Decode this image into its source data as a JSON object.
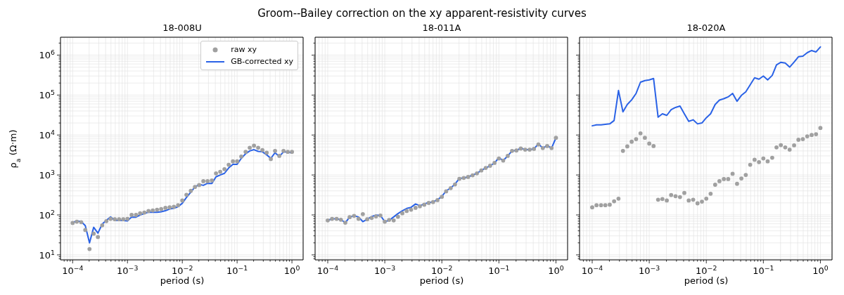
{
  "chart_data": [
    {
      "type": "line",
      "title": "18-008U",
      "annotations": [
        "Groom--Bailey correction on the xy apparent-resistivity curves"
      ],
      "xlabel": "period (s)",
      "ylabel": "ρ$_{a}$  (Ω·m)",
      "log": "xy",
      "grid": true,
      "legend": "top right",
      "x": [
        0.0001,
        0.000119,
        0.000143,
        0.00017,
        0.000203,
        0.000242,
        0.000289,
        0.000346,
        0.000412,
        0.000492,
        0.000588,
        0.000702,
        0.000838,
        0.001,
        0.00119,
        0.00143,
        0.0017,
        0.00203,
        0.00242,
        0.00289,
        0.00346,
        0.00412,
        0.00492,
        0.00588,
        0.00702,
        0.00838,
        0.01,
        0.0119,
        0.0143,
        0.017,
        0.0203,
        0.0242,
        0.0289,
        0.0346,
        0.0412,
        0.0492,
        0.0588,
        0.0702,
        0.0838,
        0.1,
        0.119,
        0.143,
        0.17,
        0.203,
        0.242,
        0.289,
        0.346,
        0.412,
        0.492,
        0.588,
        0.702,
        0.838,
        1
      ],
      "xlim": [
        6e-05,
        1.6
      ],
      "ylim": [
        7.5,
        2800000
      ],
      "xticks": [
        {
          "value": 7e-05,
          "label": null
        },
        {
          "value": 8e-05,
          "label": null
        },
        {
          "value": 9e-05,
          "label": null
        },
        {
          "value": 0.0001,
          "label": "10$^{−4}$"
        },
        {
          "value": 0.0002,
          "label": null
        },
        {
          "value": 0.0003,
          "label": null
        },
        {
          "value": 0.0004,
          "label": null
        },
        {
          "value": 0.0005,
          "label": null
        },
        {
          "value": 0.0006,
          "label": null
        },
        {
          "value": 0.0007,
          "label": null
        },
        {
          "value": 0.0008,
          "label": null
        },
        {
          "value": 0.0009,
          "label": null
        },
        {
          "value": 0.001,
          "label": "10$^{−3}$"
        },
        {
          "value": 0.002,
          "label": null
        },
        {
          "value": 0.003,
          "label": null
        },
        {
          "value": 0.004,
          "label": null
        },
        {
          "value": 0.005,
          "label": null
        },
        {
          "value": 0.006,
          "label": null
        },
        {
          "value": 0.007,
          "label": null
        },
        {
          "value": 0.008,
          "label": null
        },
        {
          "value": 0.009,
          "label": null
        },
        {
          "value": 0.01,
          "label": "10$^{−2}$"
        },
        {
          "value": 0.02,
          "label": null
        },
        {
          "value": 0.03,
          "label": null
        },
        {
          "value": 0.04,
          "label": null
        },
        {
          "value": 0.05,
          "label": null
        },
        {
          "value": 0.06,
          "label": null
        },
        {
          "value": 0.07,
          "label": null
        },
        {
          "value": 0.08,
          "label": null
        },
        {
          "value": 0.09,
          "label": null
        },
        {
          "value": 0.1,
          "label": "10$^{−1}$"
        },
        {
          "value": 0.2,
          "label": null
        },
        {
          "value": 0.3,
          "label": null
        },
        {
          "value": 0.4,
          "label": null
        },
        {
          "value": 0.5,
          "label": null
        },
        {
          "value": 0.6,
          "label": null
        },
        {
          "value": 0.7,
          "label": null
        },
        {
          "value": 0.8,
          "label": null
        },
        {
          "value": 0.9,
          "label": null
        },
        {
          "value": 1,
          "label": "10$^{0}$"
        }
      ],
      "yticks": [
        {
          "value": 8,
          "label": null
        },
        {
          "value": 9,
          "label": null
        },
        {
          "value": 10,
          "label": "10$^{1}$"
        },
        {
          "value": 20,
          "label": null
        },
        {
          "value": 30,
          "label": null
        },
        {
          "value": 40,
          "label": null
        },
        {
          "value": 50,
          "label": null
        },
        {
          "value": 60,
          "label": null
        },
        {
          "value": 70,
          "label": null
        },
        {
          "value": 80,
          "label": null
        },
        {
          "value": 90,
          "label": null
        },
        {
          "value": 100,
          "label": "10$^{2}$"
        },
        {
          "value": 200,
          "label": null
        },
        {
          "value": 300,
          "label": null
        },
        {
          "value": 400,
          "label": null
        },
        {
          "value": 500,
          "label": null
        },
        {
          "value": 600,
          "label": null
        },
        {
          "value": 700,
          "label": null
        },
        {
          "value": 800,
          "label": null
        },
        {
          "value": 900,
          "label": null
        },
        {
          "value": 1000,
          "label": "10$^{3}$"
        },
        {
          "value": 2000,
          "label": null
        },
        {
          "value": 3000,
          "label": null
        },
        {
          "value": 4000,
          "label": null
        },
        {
          "value": 5000,
          "label": null
        },
        {
          "value": 6000,
          "label": null
        },
        {
          "value": 7000,
          "label": null
        },
        {
          "value": 8000,
          "label": null
        },
        {
          "value": 9000,
          "label": null
        },
        {
          "value": 10000,
          "label": "10$^{4}$"
        },
        {
          "value": 20000,
          "label": null
        },
        {
          "value": 30000,
          "label": null
        },
        {
          "value": 40000,
          "label": null
        },
        {
          "value": 50000,
          "label": null
        },
        {
          "value": 60000,
          "label": null
        },
        {
          "value": 70000,
          "label": null
        },
        {
          "value": 80000,
          "label": null
        },
        {
          "value": 90000,
          "label": null
        },
        {
          "value": 100000,
          "label": "10$^{5}$"
        },
        {
          "value": 200000,
          "label": null
        },
        {
          "value": 300000,
          "label": null
        },
        {
          "value": 400000,
          "label": null
        },
        {
          "value": 500000,
          "label": null
        },
        {
          "value": 600000,
          "label": null
        },
        {
          "value": 700000,
          "label": null
        },
        {
          "value": 800000,
          "label": null
        },
        {
          "value": 900000,
          "label": null
        },
        {
          "value": 1000000,
          "label": "10$^{6}$"
        },
        {
          "value": 2000000,
          "label": null
        }
      ],
      "series": [
        {
          "name": "raw xy",
          "type": "scatter",
          "marker": "circle",
          "color": "#a0a0a0",
          "values": [
            63,
            68,
            66,
            42,
            14,
            34,
            28,
            55,
            70,
            80,
            78,
            78,
            78,
            80,
            100,
            100,
            110,
            115,
            125,
            130,
            135,
            140,
            150,
            155,
            160,
            175,
            230,
            320,
            400,
            500,
            560,
            700,
            700,
            730,
            1100,
            1200,
            1400,
            1800,
            2200,
            2200,
            2900,
            3800,
            4800,
            5400,
            4800,
            4200,
            3600,
            2500,
            4000,
            3000,
            4000,
            3800,
            3800
          ]
        },
        {
          "name": "GB-corrected xy",
          "color": "#2a62e6",
          "values": [
            64,
            71,
            68,
            54,
            20,
            49,
            35,
            59,
            73,
            89,
            73,
            74,
            72,
            71,
            89,
            88,
            100,
            108,
            117,
            116,
            116,
            120,
            127,
            141,
            147,
            161,
            196,
            273,
            370,
            500,
            580,
            550,
            620,
            610,
            900,
            1000,
            1100,
            1500,
            1850,
            1850,
            2600,
            3400,
            4000,
            4300,
            3900,
            3800,
            3200,
            2600,
            3600,
            2900,
            3800,
            3700,
            3600
          ]
        }
      ]
    },
    {
      "type": "line",
      "title": "18-011A",
      "xlabel": "period (s)",
      "log": "xy",
      "grid": true,
      "tick_labels": "x",
      "x": [
        0.0001,
        0.000119,
        0.000143,
        0.00017,
        0.000203,
        0.000242,
        0.000289,
        0.000346,
        0.000412,
        0.000492,
        0.000588,
        0.000702,
        0.000838,
        0.001,
        0.00119,
        0.00143,
        0.0017,
        0.00203,
        0.00242,
        0.00289,
        0.00346,
        0.00412,
        0.00492,
        0.00588,
        0.00702,
        0.00838,
        0.01,
        0.0119,
        0.0143,
        0.017,
        0.0203,
        0.0242,
        0.0289,
        0.0346,
        0.0412,
        0.0492,
        0.0588,
        0.0702,
        0.0838,
        0.1,
        0.119,
        0.143,
        0.17,
        0.203,
        0.242,
        0.289,
        0.346,
        0.412,
        0.492,
        0.588,
        0.702,
        0.838,
        1
      ],
      "xlim": [
        6e-05,
        1.6
      ],
      "ylim": [
        7.5,
        2800000
      ],
      "xticks": [
        {
          "value": 7e-05,
          "label": null
        },
        {
          "value": 8e-05,
          "label": null
        },
        {
          "value": 9e-05,
          "label": null
        },
        {
          "value": 0.0001,
          "label": "10$^{−4}$"
        },
        {
          "value": 0.0002,
          "label": null
        },
        {
          "value": 0.0003,
          "label": null
        },
        {
          "value": 0.0004,
          "label": null
        },
        {
          "value": 0.0005,
          "label": null
        },
        {
          "value": 0.0006,
          "label": null
        },
        {
          "value": 0.0007,
          "label": null
        },
        {
          "value": 0.0008,
          "label": null
        },
        {
          "value": 0.0009,
          "label": null
        },
        {
          "value": 0.001,
          "label": "10$^{−3}$"
        },
        {
          "value": 0.002,
          "label": null
        },
        {
          "value": 0.003,
          "label": null
        },
        {
          "value": 0.004,
          "label": null
        },
        {
          "value": 0.005,
          "label": null
        },
        {
          "value": 0.006,
          "label": null
        },
        {
          "value": 0.007,
          "label": null
        },
        {
          "value": 0.008,
          "label": null
        },
        {
          "value": 0.009,
          "label": null
        },
        {
          "value": 0.01,
          "label": "10$^{−2}$"
        },
        {
          "value": 0.02,
          "label": null
        },
        {
          "value": 0.03,
          "label": null
        },
        {
          "value": 0.04,
          "label": null
        },
        {
          "value": 0.05,
          "label": null
        },
        {
          "value": 0.06,
          "label": null
        },
        {
          "value": 0.07,
          "label": null
        },
        {
          "value": 0.08,
          "label": null
        },
        {
          "value": 0.09,
          "label": null
        },
        {
          "value": 0.1,
          "label": "10$^{−1}$"
        },
        {
          "value": 0.2,
          "label": null
        },
        {
          "value": 0.3,
          "label": null
        },
        {
          "value": 0.4,
          "label": null
        },
        {
          "value": 0.5,
          "label": null
        },
        {
          "value": 0.6,
          "label": null
        },
        {
          "value": 0.7,
          "label": null
        },
        {
          "value": 0.8,
          "label": null
        },
        {
          "value": 0.9,
          "label": null
        },
        {
          "value": 1,
          "label": "10$^{0}$"
        }
      ],
      "yticks": [
        {
          "value": 8,
          "label": null
        },
        {
          "value": 9,
          "label": null
        },
        {
          "value": 10,
          "label": null
        },
        {
          "value": 20,
          "label": null
        },
        {
          "value": 30,
          "label": null
        },
        {
          "value": 40,
          "label": null
        },
        {
          "value": 50,
          "label": null
        },
        {
          "value": 60,
          "label": null
        },
        {
          "value": 70,
          "label": null
        },
        {
          "value": 80,
          "label": null
        },
        {
          "value": 90,
          "label": null
        },
        {
          "value": 100,
          "label": null
        },
        {
          "value": 200,
          "label": null
        },
        {
          "value": 300,
          "label": null
        },
        {
          "value": 400,
          "label": null
        },
        {
          "value": 500,
          "label": null
        },
        {
          "value": 600,
          "label": null
        },
        {
          "value": 700,
          "label": null
        },
        {
          "value": 800,
          "label": null
        },
        {
          "value": 900,
          "label": null
        },
        {
          "value": 1000,
          "label": null
        },
        {
          "value": 2000,
          "label": null
        },
        {
          "value": 3000,
          "label": null
        },
        {
          "value": 4000,
          "label": null
        },
        {
          "value": 5000,
          "label": null
        },
        {
          "value": 6000,
          "label": null
        },
        {
          "value": 7000,
          "label": null
        },
        {
          "value": 8000,
          "label": null
        },
        {
          "value": 9000,
          "label": null
        },
        {
          "value": 10000,
          "label": null
        },
        {
          "value": 20000,
          "label": null
        },
        {
          "value": 30000,
          "label": null
        },
        {
          "value": 40000,
          "label": null
        },
        {
          "value": 50000,
          "label": null
        },
        {
          "value": 60000,
          "label": null
        },
        {
          "value": 70000,
          "label": null
        },
        {
          "value": 80000,
          "label": null
        },
        {
          "value": 90000,
          "label": null
        },
        {
          "value": 100000,
          "label": null
        },
        {
          "value": 200000,
          "label": null
        },
        {
          "value": 300000,
          "label": null
        },
        {
          "value": 400000,
          "label": null
        },
        {
          "value": 500000,
          "label": null
        },
        {
          "value": 600000,
          "label": null
        },
        {
          "value": 700000,
          "label": null
        },
        {
          "value": 800000,
          "label": null
        },
        {
          "value": 900000,
          "label": null
        },
        {
          "value": 1000000,
          "label": null
        },
        {
          "value": 2000000,
          "label": null
        }
      ],
      "series": [
        {
          "type": "scatter",
          "marker": "circle",
          "color": "#a0a0a0",
          "values": [
            73,
            80,
            80,
            76,
            64,
            88,
            95,
            80,
            105,
            78,
            84,
            92,
            97,
            68,
            75,
            73,
            90,
            110,
            125,
            135,
            150,
            165,
            180,
            200,
            210,
            235,
            285,
            390,
            470,
            580,
            800,
            840,
            890,
            980,
            1100,
            1300,
            1500,
            1700,
            2000,
            2600,
            2300,
            3000,
            4000,
            4100,
            4600,
            4300,
            4300,
            4500,
            5800,
            4700,
            5300,
            4700,
            8500
          ]
        },
        {
          "color": "#2a62e6",
          "values": [
            73,
            80,
            80,
            76,
            64,
            88,
            95,
            89,
            68,
            78,
            91,
            99,
            97,
            68,
            73,
            89,
            108,
            127,
            145,
            155,
            188,
            170,
            188,
            205,
            210,
            240,
            290,
            400,
            475,
            590,
            820,
            840,
            900,
            990,
            1100,
            1300,
            1500,
            1700,
            2000,
            2700,
            2300,
            3000,
            4000,
            4100,
            4700,
            4300,
            4300,
            4500,
            6000,
            4700,
            5400,
            4700,
            8500
          ]
        }
      ]
    },
    {
      "type": "line",
      "title": "18-020A",
      "xlabel": "period (s)",
      "log": "xy",
      "grid": true,
      "tick_labels": "x",
      "x": [
        0.0001,
        0.000119,
        0.000143,
        0.00017,
        0.000203,
        0.000242,
        0.000289,
        0.000346,
        0.000412,
        0.000492,
        0.000588,
        0.000702,
        0.000838,
        0.001,
        0.00119,
        0.00143,
        0.0017,
        0.00203,
        0.00242,
        0.00289,
        0.00346,
        0.00412,
        0.00492,
        0.00588,
        0.00702,
        0.00838,
        0.01,
        0.0119,
        0.0143,
        0.017,
        0.0203,
        0.0242,
        0.0289,
        0.0346,
        0.0412,
        0.0492,
        0.0588,
        0.0702,
        0.0838,
        0.1,
        0.119,
        0.143,
        0.17,
        0.203,
        0.242,
        0.289,
        0.346,
        0.412,
        0.492,
        0.588,
        0.702,
        0.838,
        1
      ],
      "xlim": [
        6e-05,
        1.6
      ],
      "ylim": [
        7.5,
        2800000
      ],
      "xticks": [
        {
          "value": 7e-05,
          "label": null
        },
        {
          "value": 8e-05,
          "label": null
        },
        {
          "value": 9e-05,
          "label": null
        },
        {
          "value": 0.0001,
          "label": "10$^{−4}$"
        },
        {
          "value": 0.0002,
          "label": null
        },
        {
          "value": 0.0003,
          "label": null
        },
        {
          "value": 0.0004,
          "label": null
        },
        {
          "value": 0.0005,
          "label": null
        },
        {
          "value": 0.0006,
          "label": null
        },
        {
          "value": 0.0007,
          "label": null
        },
        {
          "value": 0.0008,
          "label": null
        },
        {
          "value": 0.0009,
          "label": null
        },
        {
          "value": 0.001,
          "label": "10$^{−3}$"
        },
        {
          "value": 0.002,
          "label": null
        },
        {
          "value": 0.003,
          "label": null
        },
        {
          "value": 0.004,
          "label": null
        },
        {
          "value": 0.005,
          "label": null
        },
        {
          "value": 0.006,
          "label": null
        },
        {
          "value": 0.007,
          "label": null
        },
        {
          "value": 0.008,
          "label": null
        },
        {
          "value": 0.009,
          "label": null
        },
        {
          "value": 0.01,
          "label": "10$^{−2}$"
        },
        {
          "value": 0.02,
          "label": null
        },
        {
          "value": 0.03,
          "label": null
        },
        {
          "value": 0.04,
          "label": null
        },
        {
          "value": 0.05,
          "label": null
        },
        {
          "value": 0.06,
          "label": null
        },
        {
          "value": 0.07,
          "label": null
        },
        {
          "value": 0.08,
          "label": null
        },
        {
          "value": 0.09,
          "label": null
        },
        {
          "value": 0.1,
          "label": "10$^{−1}$"
        },
        {
          "value": 0.2,
          "label": null
        },
        {
          "value": 0.3,
          "label": null
        },
        {
          "value": 0.4,
          "label": null
        },
        {
          "value": 0.5,
          "label": null
        },
        {
          "value": 0.6,
          "label": null
        },
        {
          "value": 0.7,
          "label": null
        },
        {
          "value": 0.8,
          "label": null
        },
        {
          "value": 0.9,
          "label": null
        },
        {
          "value": 1,
          "label": "10$^{0}$"
        }
      ],
      "yticks": [
        {
          "value": 8,
          "label": null
        },
        {
          "value": 9,
          "label": null
        },
        {
          "value": 10,
          "label": null
        },
        {
          "value": 20,
          "label": null
        },
        {
          "value": 30,
          "label": null
        },
        {
          "value": 40,
          "label": null
        },
        {
          "value": 50,
          "label": null
        },
        {
          "value": 60,
          "label": null
        },
        {
          "value": 70,
          "label": null
        },
        {
          "value": 80,
          "label": null
        },
        {
          "value": 90,
          "label": null
        },
        {
          "value": 100,
          "label": null
        },
        {
          "value": 200,
          "label": null
        },
        {
          "value": 300,
          "label": null
        },
        {
          "value": 400,
          "label": null
        },
        {
          "value": 500,
          "label": null
        },
        {
          "value": 600,
          "label": null
        },
        {
          "value": 700,
          "label": null
        },
        {
          "value": 800,
          "label": null
        },
        {
          "value": 900,
          "label": null
        },
        {
          "value": 1000,
          "label": null
        },
        {
          "value": 2000,
          "label": null
        },
        {
          "value": 3000,
          "label": null
        },
        {
          "value": 4000,
          "label": null
        },
        {
          "value": 5000,
          "label": null
        },
        {
          "value": 6000,
          "label": null
        },
        {
          "value": 7000,
          "label": null
        },
        {
          "value": 8000,
          "label": null
        },
        {
          "value": 9000,
          "label": null
        },
        {
          "value": 10000,
          "label": null
        },
        {
          "value": 20000,
          "label": null
        },
        {
          "value": 30000,
          "label": null
        },
        {
          "value": 40000,
          "label": null
        },
        {
          "value": 50000,
          "label": null
        },
        {
          "value": 60000,
          "label": null
        },
        {
          "value": 70000,
          "label": null
        },
        {
          "value": 80000,
          "label": null
        },
        {
          "value": 90000,
          "label": null
        },
        {
          "value": 100000,
          "label": null
        },
        {
          "value": 200000,
          "label": null
        },
        {
          "value": 300000,
          "label": null
        },
        {
          "value": 400000,
          "label": null
        },
        {
          "value": 500000,
          "label": null
        },
        {
          "value": 600000,
          "label": null
        },
        {
          "value": 700000,
          "label": null
        },
        {
          "value": 800000,
          "label": null
        },
        {
          "value": 900000,
          "label": null
        },
        {
          "value": 1000000,
          "label": null
        },
        {
          "value": 2000000,
          "label": null
        }
      ],
      "series": [
        {
          "type": "scatter",
          "marker": "circle",
          "color": "#a0a0a0",
          "values": [
            155,
            175,
            175,
            175,
            180,
            220,
            255,
            4000,
            5200,
            6800,
            7900,
            11000,
            8500,
            6100,
            5300,
            240,
            250,
            230,
            315,
            295,
            280,
            355,
            230,
            240,
            195,
            215,
            255,
            340,
            570,
            700,
            790,
            790,
            1070,
            600,
            820,
            1000,
            1800,
            2400,
            2100,
            2600,
            2200,
            2700,
            4900,
            5600,
            4900,
            4300,
            5500,
            7600,
            7900,
            9300,
            10000,
            10500,
            15000
          ]
        },
        {
          "color": "#2a62e6",
          "values": [
            17000,
            18000,
            18000,
            18500,
            19000,
            23000,
            130000,
            38000,
            58000,
            76000,
            110000,
            210000,
            230000,
            240000,
            260000,
            28000,
            34000,
            31000,
            43000,
            49000,
            53000,
            34000,
            22000,
            24000,
            19000,
            20000,
            27000,
            34000,
            58000,
            75000,
            81000,
            90000,
            110000,
            70000,
            98000,
            120000,
            180000,
            270000,
            250000,
            300000,
            240000,
            310000,
            570000,
            660000,
            630000,
            500000,
            670000,
            910000,
            940000,
            1150000,
            1300000,
            1200000,
            1600000
          ]
        }
      ]
    }
  ]
}
